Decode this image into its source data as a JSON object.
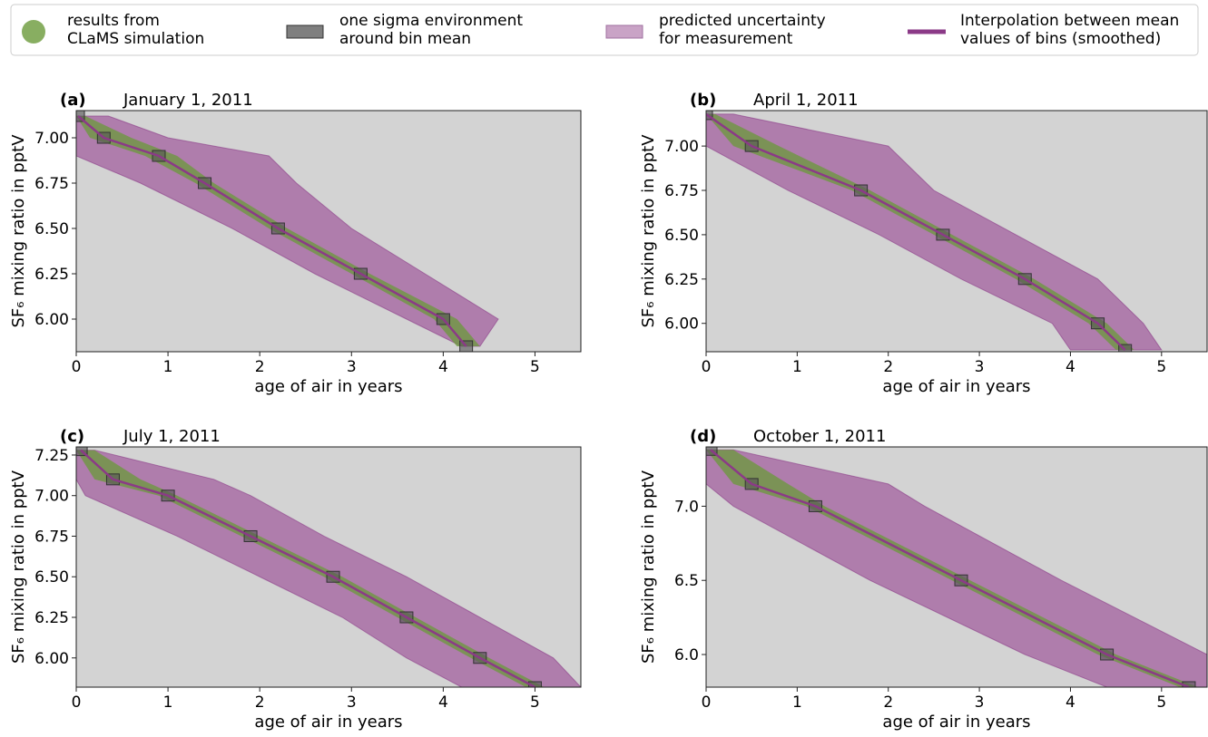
{
  "legend": [
    {
      "name": [
        "results from",
        "CLaMS simulation"
      ],
      "color": "#6a9a3a"
    },
    {
      "name": [
        "one sigma environment",
        "around bin mean"
      ],
      "color": "#7f7f7f"
    },
    {
      "name": [
        "predicted uncertainty",
        "for measurement"
      ],
      "color": "#c9a3c6"
    },
    {
      "name": [
        "Interpolation between mean",
        "values of bins (smoothed)"
      ],
      "color": "#8b3a87"
    }
  ],
  "chart_data": [
    {
      "type": "band",
      "label": "(a)",
      "title": "January 1, 2011",
      "xlabel": "age of air in years",
      "ylabel": "SF₆ mixing ratio in pptV",
      "xlim": [
        0,
        5.5
      ],
      "xticks": [
        0,
        1,
        2,
        3,
        4,
        5
      ],
      "ylim": [
        5.82,
        7.15
      ],
      "yticks": [
        {
          "value": 6,
          "label": "6.00"
        },
        {
          "value": 6.25,
          "label": "6.25"
        },
        {
          "value": 6.5,
          "label": "6.50"
        },
        {
          "value": 6.75,
          "label": "6.75"
        },
        {
          "value": 7,
          "label": "7.00"
        }
      ],
      "levels": [
        7.12,
        7.0,
        6.9,
        6.75,
        6.5,
        6.25,
        6.0,
        5.85
      ],
      "mean": [
        0.02,
        0.3,
        0.9,
        1.4,
        2.2,
        3.1,
        4.0,
        4.25
      ],
      "sim_left": [
        0,
        0.15,
        0.75,
        1.3,
        2.1,
        3.0,
        3.9,
        4.15
      ],
      "sim_right": [
        0.1,
        0.6,
        1.1,
        1.5,
        2.3,
        3.2,
        4.15,
        4.4
      ],
      "band_left": [
        0,
        0,
        0,
        0.7,
        1.7,
        2.6,
        3.6,
        4.2
      ],
      "band_right": [
        0.35,
        1.0,
        2.1,
        2.4,
        3.0,
        3.8,
        4.6,
        4.4
      ]
    },
    {
      "type": "band",
      "label": "(b)",
      "title": "April 1, 2011",
      "xlabel": "age of air in years",
      "ylabel": "SF₆ mixing ratio in pptV",
      "xlim": [
        0,
        5.5
      ],
      "xticks": [
        0,
        1,
        2,
        3,
        4,
        5
      ],
      "ylim": [
        5.84,
        7.2
      ],
      "yticks": [
        {
          "value": 6,
          "label": "6.00"
        },
        {
          "value": 6.25,
          "label": "6.25"
        },
        {
          "value": 6.5,
          "label": "6.50"
        },
        {
          "value": 6.75,
          "label": "6.75"
        },
        {
          "value": 7,
          "label": "7.00"
        }
      ],
      "levels": [
        7.18,
        7.0,
        6.75,
        6.5,
        6.25,
        6.0,
        5.85
      ],
      "mean": [
        0.0,
        0.5,
        1.7,
        2.6,
        3.5,
        4.3,
        4.6
      ],
      "sim_left": [
        0,
        0.3,
        1.6,
        2.5,
        3.4,
        4.2,
        4.5
      ],
      "sim_right": [
        0.1,
        0.8,
        1.8,
        2.7,
        3.6,
        4.4,
        4.7
      ],
      "band_left": [
        0,
        0,
        0.9,
        1.9,
        2.8,
        3.8,
        4.0
      ],
      "band_right": [
        0.3,
        2.0,
        2.5,
        3.4,
        4.3,
        4.8,
        5.0
      ]
    },
    {
      "type": "band",
      "label": "(c)",
      "title": "July 1, 2011",
      "xlabel": "age of air in years",
      "ylabel": "SF₆ mixing ratio in pptV",
      "xlim": [
        0,
        5.5
      ],
      "xticks": [
        0,
        1,
        2,
        3,
        4,
        5
      ],
      "ylim": [
        5.82,
        7.3
      ],
      "yticks": [
        {
          "value": 6,
          "label": "6.00"
        },
        {
          "value": 6.25,
          "label": "6.25"
        },
        {
          "value": 6.5,
          "label": "6.50"
        },
        {
          "value": 6.75,
          "label": "6.75"
        },
        {
          "value": 7,
          "label": "7.00"
        },
        {
          "value": 7.25,
          "label": "7.25"
        }
      ],
      "levels": [
        7.28,
        7.1,
        7.0,
        6.75,
        6.5,
        6.25,
        6.0,
        5.82
      ],
      "mean": [
        0.05,
        0.4,
        1.0,
        1.9,
        2.8,
        3.6,
        4.4,
        5.0
      ],
      "sim_left": [
        0,
        0.2,
        0.9,
        1.8,
        2.7,
        3.5,
        4.3,
        4.9
      ],
      "sim_right": [
        0.2,
        0.7,
        1.1,
        2.0,
        2.9,
        3.7,
        4.5,
        5.1
      ],
      "band_left": [
        0,
        0,
        0.1,
        1.1,
        2.0,
        2.9,
        3.6,
        4.2
      ],
      "band_right": [
        0.2,
        1.5,
        1.9,
        2.7,
        3.6,
        4.4,
        5.2,
        5.5
      ]
    },
    {
      "type": "band",
      "label": "(d)",
      "title": "October 1, 2011",
      "xlabel": "age of air in years",
      "ylabel": "SF₆ mixing ratio in pptV",
      "xlim": [
        0,
        5.5
      ],
      "xticks": [
        0,
        1,
        2,
        3,
        4,
        5
      ],
      "ylim": [
        5.78,
        7.4
      ],
      "yticks": [
        {
          "value": 6,
          "label": "6.0"
        },
        {
          "value": 6.5,
          "label": "6.5"
        },
        {
          "value": 7,
          "label": "7.0"
        }
      ],
      "levels": [
        7.38,
        7.15,
        7.0,
        6.5,
        6.0,
        5.78
      ],
      "mean": [
        0.05,
        0.5,
        1.2,
        2.8,
        4.4,
        5.3
      ],
      "sim_left": [
        0,
        0.3,
        1.1,
        2.7,
        4.3,
        5.2
      ],
      "sim_right": [
        0.3,
        0.9,
        1.3,
        2.9,
        4.5,
        5.4
      ],
      "band_left": [
        0,
        0,
        0.3,
        1.8,
        3.5,
        4.4
      ],
      "band_right": [
        0.3,
        2.0,
        2.4,
        3.9,
        5.5,
        5.5
      ]
    }
  ]
}
